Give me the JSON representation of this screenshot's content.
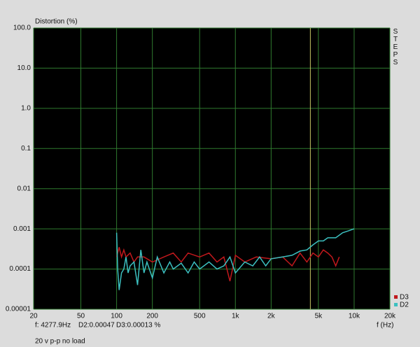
{
  "chart_data": {
    "type": "line",
    "title": "Distortion (%)",
    "side_label": "STEPS",
    "x_label": "f (Hz)",
    "status": [
      "f: 4277.9Hz",
      "D2:0.00047",
      "D3:0.00013 %"
    ],
    "note": "20 v p-p no load",
    "cursor_x": 4277.9,
    "cursor_color": "#c8c864",
    "xscale": "log",
    "yscale": "log",
    "grid": true,
    "legend": "lower right",
    "xlim": [
      20,
      20000
    ],
    "ylim": [
      1e-05,
      100
    ],
    "xticks": [
      20,
      50,
      100,
      200,
      500,
      {
        "value": 1000,
        "label": "1k"
      },
      {
        "value": 2000,
        "label": "2k"
      },
      {
        "value": 5000,
        "label": "5k"
      },
      {
        "value": 10000,
        "label": "10k"
      },
      {
        "value": 20000,
        "label": "20k"
      }
    ],
    "yticks": [
      {
        "value": 100,
        "label": "100.0"
      },
      {
        "value": 10,
        "label": "10.0"
      },
      {
        "value": 1,
        "label": "1.0"
      },
      0.1,
      0.01,
      0.001,
      0.0001,
      1e-05
    ],
    "series": [
      {
        "name": "D3",
        "color": "#c0181c",
        "x": [
          100,
          105,
          110,
          115,
          120,
          130,
          140,
          150,
          170,
          200,
          250,
          300,
          350,
          400,
          500,
          600,
          700,
          800,
          900,
          1000,
          1200,
          1500,
          2000,
          2500,
          3000,
          3500,
          4000,
          4500,
          5000,
          5500,
          6000,
          6500,
          7000,
          7500
        ],
        "values": [
          0.0002,
          0.00035,
          0.0002,
          0.0003,
          0.0002,
          0.00025,
          0.00015,
          0.0002,
          0.0002,
          0.00015,
          0.0002,
          0.00025,
          0.00015,
          0.00025,
          0.0002,
          0.00025,
          0.00015,
          0.0002,
          5e-05,
          0.00022,
          0.00015,
          0.0002,
          0.00018,
          0.0002,
          0.00012,
          0.00025,
          0.00015,
          0.00025,
          0.0002,
          0.0003,
          0.00025,
          0.0002,
          0.00012,
          0.0002
        ]
      },
      {
        "name": "D2",
        "color": "#3cc0c0",
        "x": [
          100,
          102,
          105,
          110,
          115,
          120,
          125,
          130,
          140,
          150,
          160,
          170,
          180,
          200,
          220,
          250,
          280,
          300,
          350,
          400,
          450,
          500,
          600,
          700,
          800,
          900,
          1000,
          1200,
          1400,
          1600,
          1800,
          2000,
          2500,
          3000,
          3500,
          4000,
          4500,
          5000,
          5500,
          6000,
          7000,
          8000,
          9000,
          10000
        ],
        "values": [
          0.0008,
          0.0001,
          3e-05,
          8e-05,
          0.0001,
          0.0002,
          8e-05,
          0.00012,
          0.00015,
          4e-05,
          0.0003,
          8e-05,
          0.00015,
          6e-05,
          0.0002,
          8e-05,
          0.00015,
          0.0001,
          0.00014,
          8e-05,
          0.00015,
          0.0001,
          0.00015,
          0.0001,
          0.00012,
          0.0002,
          8e-05,
          0.00015,
          0.00012,
          0.0002,
          0.00012,
          0.00018,
          0.0002,
          0.00022,
          0.00028,
          0.0003,
          0.0004,
          0.0005,
          0.0005,
          0.0006,
          0.0006,
          0.0008,
          0.0009,
          0.001
        ]
      }
    ]
  }
}
